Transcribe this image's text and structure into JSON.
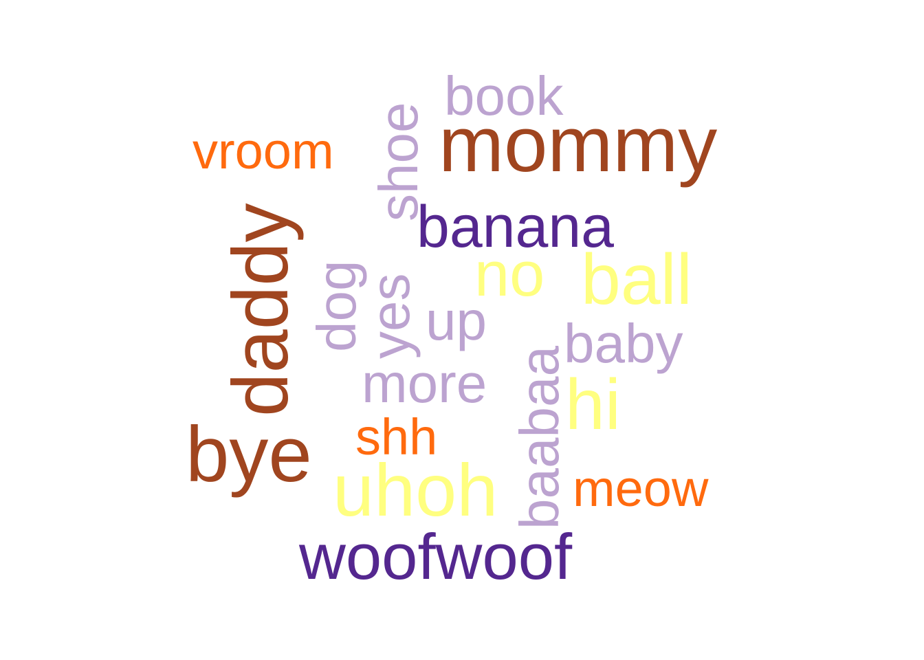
{
  "colors": {
    "brown": "#A0451F",
    "purple": "#54278F",
    "orange": "#FF6A0E",
    "yellow": "#FFFF80",
    "lavender": "#BCA3D0"
  },
  "words": {
    "mommy": {
      "text": "mommy",
      "color": "#A0451F"
    },
    "daddy": {
      "text": "daddy",
      "color": "#A0451F"
    },
    "bye": {
      "text": "bye",
      "color": "#A0451F"
    },
    "woofwoof": {
      "text": "woofwoof",
      "color": "#54278F"
    },
    "banana": {
      "text": "banana",
      "color": "#54278F"
    },
    "vroom": {
      "text": "vroom",
      "color": "#FF6A0E"
    },
    "meow": {
      "text": "meow",
      "color": "#FF6A0E"
    },
    "shh": {
      "text": "shh",
      "color": "#FF6A0E"
    },
    "uhoh": {
      "text": "uhoh",
      "color": "#FFFF80"
    },
    "ball": {
      "text": "ball",
      "color": "#FFFF80"
    },
    "no": {
      "text": "no",
      "color": "#FFFF80"
    },
    "hi": {
      "text": "hi",
      "color": "#FFFF80"
    },
    "book": {
      "text": "book",
      "color": "#BCA3D0"
    },
    "shoe": {
      "text": "shoe",
      "color": "#BCA3D0"
    },
    "dog": {
      "text": "dog",
      "color": "#BCA3D0"
    },
    "yes": {
      "text": "yes",
      "color": "#BCA3D0"
    },
    "up": {
      "text": "up",
      "color": "#BCA3D0"
    },
    "baby": {
      "text": "baby",
      "color": "#BCA3D0"
    },
    "more": {
      "text": "more",
      "color": "#BCA3D0"
    },
    "baabaa": {
      "text": "baabaa",
      "color": "#BCA3D0"
    }
  }
}
